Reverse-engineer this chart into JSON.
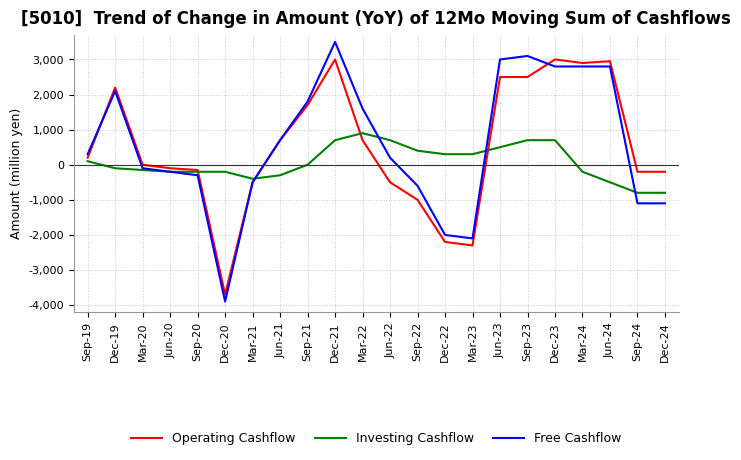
{
  "title": "[5010]  Trend of Change in Amount (YoY) of 12Mo Moving Sum of Cashflows",
  "ylabel": "Amount (million yen)",
  "x_labels": [
    "Sep-19",
    "Dec-19",
    "Mar-20",
    "Jun-20",
    "Sep-20",
    "Dec-20",
    "Mar-21",
    "Jun-21",
    "Sep-21",
    "Dec-21",
    "Mar-22",
    "Jun-22",
    "Sep-22",
    "Dec-22",
    "Mar-23",
    "Jun-23",
    "Sep-23",
    "Dec-23",
    "Mar-24",
    "Jun-24",
    "Sep-24",
    "Dec-24"
  ],
  "operating": [
    200,
    2200,
    0,
    -100,
    -150,
    -3700,
    -500,
    700,
    1700,
    3000,
    700,
    -500,
    -1000,
    -2200,
    -2300,
    2500,
    2500,
    3000,
    2900,
    2950,
    -200,
    -200
  ],
  "investing": [
    100,
    -100,
    -150,
    -200,
    -200,
    -200,
    -400,
    -300,
    0,
    700,
    900,
    700,
    400,
    300,
    300,
    500,
    700,
    700,
    -200,
    -500,
    -800,
    -800
  ],
  "free": [
    300,
    2100,
    -100,
    -200,
    -300,
    -3900,
    -500,
    700,
    1800,
    3500,
    1600,
    200,
    -600,
    -2000,
    -2100,
    3000,
    3100,
    2800,
    2800,
    2800,
    -1100,
    -1100
  ],
  "operating_color": "#ff0000",
  "investing_color": "#008000",
  "free_color": "#0000ff",
  "ylim": [
    -4200,
    3700
  ],
  "yticks": [
    -4000,
    -3000,
    -2000,
    -1000,
    0,
    1000,
    2000,
    3000
  ],
  "background_color": "#ffffff",
  "grid_color": "#c8c8c8",
  "grid_style": "dotted",
  "title_fontsize": 12,
  "axis_fontsize": 9,
  "tick_fontsize": 8
}
